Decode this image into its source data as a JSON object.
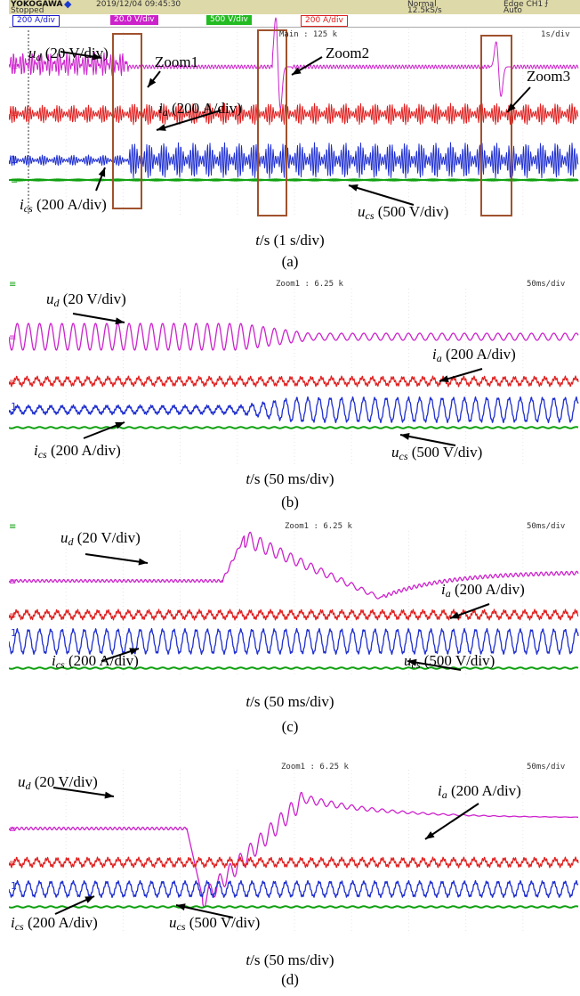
{
  "scope_header": {
    "brand": "YOKOGAWA",
    "datetime": "2019/12/04  09:45:30",
    "status": "Stopped",
    "trigger_mode": "Normal",
    "sample_rate": "12.5kS/s",
    "trigger": "Edge CH1",
    "trigger_sub": "Auto",
    "channels": [
      {
        "label": "200 A/div",
        "color": "#1a1acc"
      },
      {
        "label": "20.0 V/div",
        "color": "#cc22cc"
      },
      {
        "label": "500 V/div",
        "color": "#11aa11"
      },
      {
        "label": "200 A/div",
        "color": "#dd2222"
      }
    ]
  },
  "colors": {
    "ud": "#cc22cc",
    "ia": "#e02020",
    "ics": "#2030d0",
    "ucs": "#10a010",
    "zoom_box": "#a0522d"
  },
  "panels": [
    {
      "id": "a",
      "tag": "(a)",
      "scale_text": "Main : 125 k",
      "timebase": "1s/div",
      "caption_var": "t",
      "caption_rest": "/s (1 s/div)",
      "labels": [
        {
          "sym": "u",
          "sub": "d",
          "text": " (20 V/div)"
        },
        {
          "sym": "i",
          "sub": "a",
          "text": " (200 A/div)"
        },
        {
          "sym": "i",
          "sub": "cs",
          "text": " (200 A/div)"
        },
        {
          "sym": "u",
          "sub": "cs",
          "text": " (500 V/div)"
        }
      ],
      "zoom_labels": [
        "Zoom1",
        "Zoom2",
        "Zoom3"
      ]
    },
    {
      "id": "b",
      "tag": "(b)",
      "scale_text": "Zoom1 : 6.25 k",
      "timebase": "50ms/div",
      "caption_var": "t",
      "caption_rest": "/s (50 ms/div)",
      "labels": [
        {
          "sym": "u",
          "sub": "d",
          "text": " (20 V/div)"
        },
        {
          "sym": "i",
          "sub": "a",
          "text": " (200 A/div)"
        },
        {
          "sym": "i",
          "sub": "cs",
          "text": " (200 A/div)"
        },
        {
          "sym": "u",
          "sub": "cs",
          "text": " (500 V/div)"
        }
      ]
    },
    {
      "id": "c",
      "tag": "(c)",
      "scale_text": "Zoom1 : 6.25 k",
      "timebase": "50ms/div",
      "caption_var": "t",
      "caption_rest": "/s (50 ms/div)",
      "labels": [
        {
          "sym": "u",
          "sub": "d",
          "text": " (20 V/div)"
        },
        {
          "sym": "i",
          "sub": "a",
          "text": " (200 A/div)"
        },
        {
          "sym": "i",
          "sub": "cs",
          "text": " (200 A/div)"
        },
        {
          "sym": "u",
          "sub": "cs",
          "text": " (500 V/div)"
        }
      ]
    },
    {
      "id": "d",
      "tag": "(d)",
      "scale_text": "Zoom1 : 6.25 k",
      "timebase": "50ms/div",
      "caption_var": "t",
      "caption_rest": "/s (50 ms/div)",
      "labels": [
        {
          "sym": "u",
          "sub": "d",
          "text": " (20 V/div)"
        },
        {
          "sym": "i",
          "sub": "a",
          "text": " (200 A/div)"
        },
        {
          "sym": "i",
          "sub": "cs",
          "text": " (200 A/div)"
        },
        {
          "sym": "u",
          "sub": "cs",
          "text": " (500 V/div)"
        }
      ]
    }
  ],
  "chart_data": [
    {
      "type": "line",
      "panel": "a",
      "timebase": "1s/div",
      "series": [
        {
          "name": "u_d"
        },
        {
          "name": "i_a"
        },
        {
          "name": "i_cs"
        },
        {
          "name": "u_cs"
        }
      ]
    },
    {
      "type": "line",
      "panel": "b",
      "timebase": "50ms/div",
      "series": [
        {
          "name": "u_d"
        },
        {
          "name": "i_a"
        },
        {
          "name": "i_cs"
        },
        {
          "name": "u_cs"
        }
      ]
    },
    {
      "type": "line",
      "panel": "c",
      "timebase": "50ms/div",
      "series": [
        {
          "name": "u_d"
        },
        {
          "name": "i_a"
        },
        {
          "name": "i_cs"
        },
        {
          "name": "u_cs"
        }
      ]
    },
    {
      "type": "line",
      "panel": "d",
      "timebase": "50ms/div",
      "series": [
        {
          "name": "u_d"
        },
        {
          "name": "i_a"
        },
        {
          "name": "i_cs"
        },
        {
          "name": "u_cs"
        }
      ]
    }
  ]
}
